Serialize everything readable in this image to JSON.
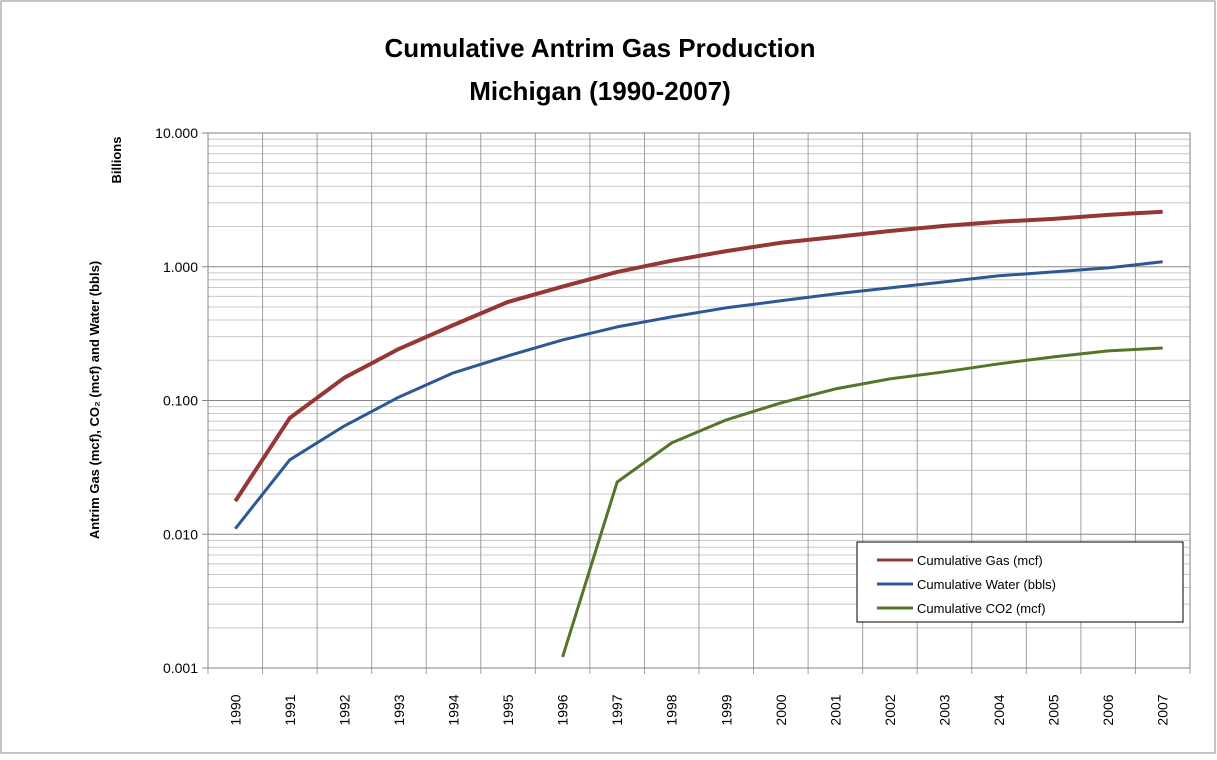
{
  "chart_data": {
    "type": "line",
    "title": "Cumulative Antrim Gas Production",
    "subtitle": "Michigan (1990-2007)",
    "y_label": "Antrim Gas (mcf),  CO₂ (mcf)  and Water (bbls)",
    "y_unit_label": "Billions",
    "categories": [
      "1990",
      "1991",
      "1992",
      "1993",
      "1994",
      "1995",
      "1996",
      "1997",
      "1998",
      "1999",
      "2000",
      "2001",
      "2002",
      "2003",
      "2004",
      "2005",
      "2006",
      "2007"
    ],
    "series": [
      {
        "name": "Cumulative Gas (mcf)",
        "color": "#953735",
        "values": [
          0.0177,
          0.074,
          0.148,
          0.243,
          0.367,
          0.546,
          0.71,
          0.915,
          1.11,
          1.31,
          1.51,
          1.67,
          1.85,
          2.02,
          2.17,
          2.28,
          2.44,
          2.58
        ]
      },
      {
        "name": "Cumulative Water (bbls)",
        "color": "#2c5896",
        "values": [
          0.011,
          0.036,
          0.0646,
          0.106,
          0.161,
          0.216,
          0.284,
          0.355,
          0.422,
          0.493,
          0.556,
          0.627,
          0.695,
          0.771,
          0.855,
          0.915,
          0.98,
          1.09
        ]
      },
      {
        "name": "Cumulative CO2 (mcf)",
        "color": "#56742a",
        "values": [
          null,
          null,
          null,
          null,
          null,
          null,
          0.00121,
          0.0246,
          0.0482,
          0.0716,
          0.096,
          0.122,
          0.145,
          0.164,
          0.188,
          0.212,
          0.235,
          0.247
        ]
      }
    ],
    "ylim": [
      0.001,
      10
    ],
    "yticks": [
      {
        "value": 0.001,
        "label": "0.001"
      },
      {
        "value": 0.01,
        "label": "0.010"
      },
      {
        "value": 0.1,
        "label": "0.100"
      },
      {
        "value": 1,
        "label": "1.000"
      },
      {
        "value": 10,
        "label": "10.000"
      }
    ],
    "log_y": true,
    "grid": true,
    "legend": "lower right"
  }
}
